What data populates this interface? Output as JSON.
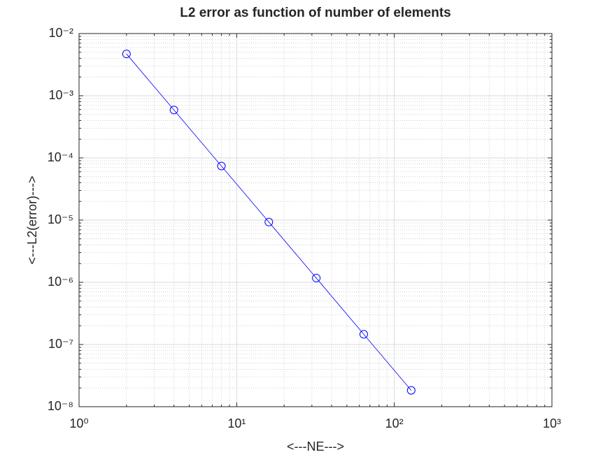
{
  "chart_data": {
    "type": "line",
    "title": "L2 error as function of number of elements",
    "xlabel": "<---NE--->",
    "ylabel": "<---L2(error)--->",
    "x": [
      2,
      4,
      8,
      16,
      32,
      64,
      128
    ],
    "series": [
      {
        "color": "#0000ff",
        "marker": "circle",
        "values": [
          0.0047,
          0.00059,
          7.4e-05,
          9.3e-06,
          1.17e-06,
          1.46e-07,
          1.83e-08
        ]
      }
    ],
    "xscale": "log",
    "yscale": "log",
    "xlim": [
      1,
      1000
    ],
    "ylim": [
      1e-08,
      0.01
    ],
    "xticks": [
      {
        "value": 1,
        "label": "10⁰"
      },
      {
        "value": 10,
        "label": "10¹"
      },
      {
        "value": 100,
        "label": "10²"
      },
      {
        "value": 1000,
        "label": "10³"
      }
    ],
    "yticks": [
      {
        "value": 1e-08,
        "label": "10⁻⁸"
      },
      {
        "value": 1e-07,
        "label": "10⁻⁷"
      },
      {
        "value": 1e-06,
        "label": "10⁻⁶"
      },
      {
        "value": 1e-05,
        "label": "10⁻⁵"
      },
      {
        "value": 0.0001,
        "label": "10⁻⁴"
      },
      {
        "value": 0.001,
        "label": "10⁻³"
      },
      {
        "value": 0.01,
        "label": "10⁻²"
      }
    ],
    "grid": true,
    "minor_grid": true
  }
}
